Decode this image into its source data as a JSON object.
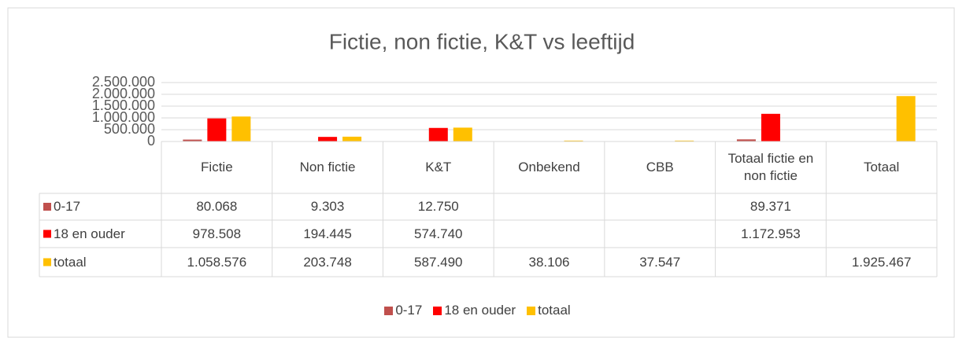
{
  "chart_data": {
    "type": "bar",
    "title": "Fictie, non fictie, K&T vs leeftijd",
    "categories": [
      "Fictie",
      "Non fictie",
      "K&T",
      "Onbekend",
      "CBB",
      "Totaal fictie en non fictie",
      "Totaal"
    ],
    "series": [
      {
        "name": "0-17",
        "color": "#c0504d",
        "values": [
          80068,
          9303,
          12750,
          null,
          null,
          89371,
          null
        ],
        "value_labels": [
          "80.068",
          "9.303",
          "12.750",
          null,
          null,
          "89.371",
          null
        ]
      },
      {
        "name": "18 en ouder",
        "color": "#ff0000",
        "values": [
          978508,
          194445,
          574740,
          null,
          null,
          1172953,
          null
        ],
        "value_labels": [
          "978.508",
          "194.445",
          "574.740",
          null,
          null,
          "1.172.953",
          null
        ]
      },
      {
        "name": "totaal",
        "color": "#ffc000",
        "values": [
          1058576,
          203748,
          587490,
          38106,
          37547,
          null,
          1925467
        ],
        "value_labels": [
          "1.058.576",
          "203.748",
          "587.490",
          "38.106",
          "37.547",
          null,
          "1.925.467"
        ]
      }
    ],
    "ylim": [
      0,
      2500000
    ],
    "yticks": [
      0,
      {
        "value": 500000,
        "label": "500.000"
      },
      {
        "value": 1000000,
        "label": "1.000.000"
      },
      {
        "value": 1500000,
        "label": "1.500.000"
      },
      {
        "value": 2000000,
        "label": "2.000.000"
      },
      {
        "value": 2500000,
        "label": "2.500.000"
      }
    ],
    "grid": true,
    "legend": "bottom"
  }
}
